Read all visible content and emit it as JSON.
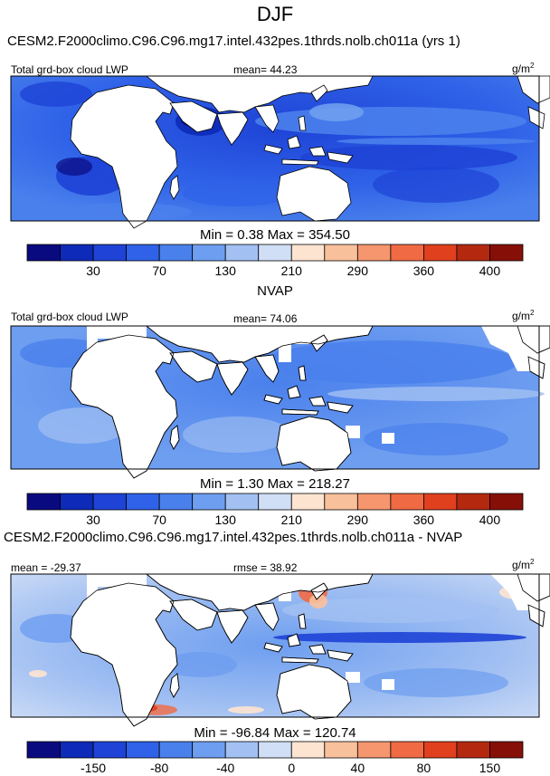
{
  "figure": {
    "title": "DJF",
    "panel1_title": "CESM2.F2000climo.C96.C96.mg17.intel.432pes.1thrds.nolb.ch011a (yrs 1)",
    "panel2_title": "NVAP",
    "panel3_title": "CESM2.F2000climo.C96.C96.mg17.intel.432pes.1thrds.nolb.ch011a - NVAP"
  },
  "panels": [
    {
      "left_label": "Total grd-box cloud LWP",
      "center_label": "mean=  44.23",
      "units": "g/m",
      "units_sup": "2",
      "minmax": "Min =   0.38 Max = 354.50"
    },
    {
      "left_label": "Total grd-box cloud LWP",
      "center_label": "mean=  74.06",
      "units": "g/m",
      "units_sup": "2",
      "minmax": "Min =   1.30 Max = 218.27"
    },
    {
      "left_label": "mean = -29.37",
      "center_label": "rmse =  38.92",
      "units": "g/m",
      "units_sup": "2",
      "minmax": "Min = -96.84 Max = 120.74"
    }
  ],
  "colorbars": {
    "abs": {
      "colors": [
        "#0a0a80",
        "#0d2ab8",
        "#1e43d6",
        "#2f62e8",
        "#4a80ec",
        "#6e9ef0",
        "#a2c0f2",
        "#d0def6",
        "#fde4d0",
        "#f9c09c",
        "#f5966e",
        "#f06a44",
        "#e0401e",
        "#b42810",
        "#861008"
      ],
      "ticks": [
        "30",
        "70",
        "130",
        "210",
        "290",
        "360",
        "400"
      ]
    },
    "diff": {
      "colors": [
        "#0a0a80",
        "#0d2ab8",
        "#1e43d6",
        "#2f62e8",
        "#4a80ec",
        "#6e9ef0",
        "#a2c0f2",
        "#d0def6",
        "#fde4d0",
        "#f9c09c",
        "#f5966e",
        "#f06a44",
        "#e0401e",
        "#b42810",
        "#861008"
      ],
      "ticks": [
        "-150",
        "-80",
        "-40",
        "0",
        "40",
        "80",
        "150"
      ]
    }
  },
  "chart_data": [
    {
      "type": "heatmap",
      "title": "CESM2.F2000climo.C96.C96.mg17.intel.432pes.1thrds.nolb.ch011a (yrs 1)",
      "variable": "Total grd-box cloud LWP",
      "units": "g/m2",
      "mean": 44.23,
      "min": 0.38,
      "max": 354.5,
      "levels": [
        30,
        70,
        130,
        210,
        290,
        360,
        400
      ]
    },
    {
      "type": "heatmap",
      "title": "NVAP",
      "variable": "Total grd-box cloud LWP",
      "units": "g/m2",
      "mean": 74.06,
      "min": 1.3,
      "max": 218.27,
      "levels": [
        30,
        70,
        130,
        210,
        290,
        360,
        400
      ]
    },
    {
      "type": "heatmap",
      "title": "CESM2.F2000climo.C96.C96.mg17.intel.432pes.1thrds.nolb.ch011a - NVAP",
      "units": "g/m2",
      "mean": -29.37,
      "rmse": 38.92,
      "min": -96.84,
      "max": 120.74,
      "levels": [
        -150,
        -80,
        -40,
        0,
        40,
        80,
        150
      ]
    }
  ]
}
